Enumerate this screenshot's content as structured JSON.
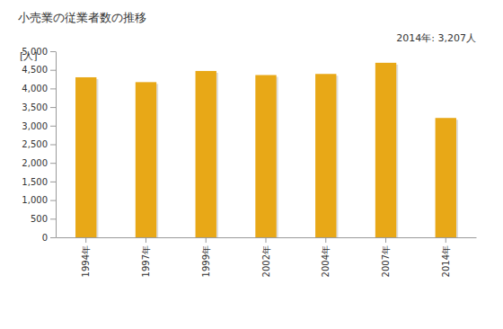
{
  "chart_data": {
    "type": "bar",
    "title": "小売業の従業者数の推移",
    "y_label": "[人]",
    "annotation": "2014年: 3,207人",
    "categories": [
      "1994年",
      "1997年",
      "1999年",
      "2002年",
      "2004年",
      "2007年",
      "2014年"
    ],
    "values": [
      4300,
      4170,
      4470,
      4360,
      4390,
      4690,
      3207
    ],
    "color": "#e8a817",
    "ylim": [
      0,
      5000
    ],
    "yticks": [
      0,
      500,
      {
        "value": 1000,
        "label": "1,000"
      },
      {
        "value": 1500,
        "label": "1,500"
      },
      {
        "value": 2000,
        "label": "2,000"
      },
      {
        "value": 2500,
        "label": "2,500"
      },
      {
        "value": 3000,
        "label": "3,000"
      },
      {
        "value": 3500,
        "label": "3,500"
      },
      {
        "value": 4000,
        "label": "4,000"
      },
      {
        "value": 4500,
        "label": "4,500"
      },
      {
        "value": 5000,
        "label": "5,000"
      }
    ],
    "grid": false
  }
}
